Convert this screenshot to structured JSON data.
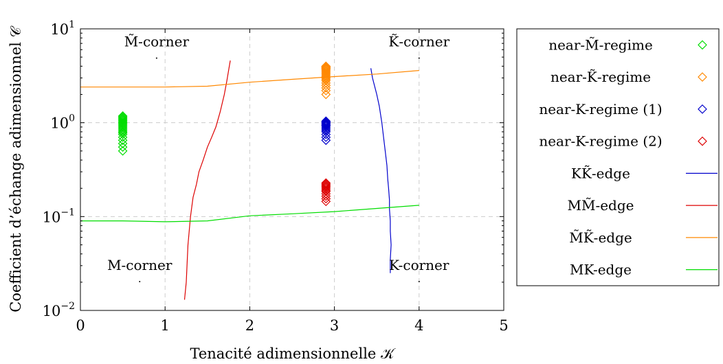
{
  "chart_data": {
    "type": "scatter",
    "xlabel": "Tenacité adimensionnelle 𝒦",
    "ylabel": "Coefficient d’échange adimensionnel 𝒞",
    "xlim": [
      0,
      5
    ],
    "ylim": [
      0.01,
      10
    ],
    "yscale": "log",
    "grid": true,
    "x_ticks": [
      "0",
      "1",
      "2",
      "3",
      "4",
      "5"
    ],
    "y_ticks": [
      {
        "value": 0.01,
        "base": "10",
        "exp": "−2"
      },
      {
        "value": 0.1,
        "base": "10",
        "exp": "−1"
      },
      {
        "value": 1,
        "base": "10",
        "exp": "0"
      },
      {
        "value": 10,
        "base": "10",
        "exp": "1"
      }
    ],
    "legend_position": "outside-right",
    "corner_labels": [
      {
        "id": "m-tilde-corner",
        "text": "M̃-corner",
        "x": 0.9,
        "y": 6.5
      },
      {
        "id": "k-tilde-corner",
        "text": "K̃-corner",
        "x": 4.0,
        "y": 6.5
      },
      {
        "id": "m-corner",
        "text": "M-corner",
        "x": 0.7,
        "y": 0.027
      },
      {
        "id": "k-corner",
        "text": "K-corner",
        "x": 4.0,
        "y": 0.027
      }
    ],
    "series": [
      {
        "name": "near-M̃-regime",
        "kind": "markers",
        "marker": "diamond",
        "color": "#00dd00",
        "x": [
          0.5,
          0.5,
          0.5,
          0.5,
          0.5,
          0.5,
          0.5,
          0.5,
          0.5,
          0.5,
          0.5,
          0.5,
          0.5,
          0.5,
          0.5,
          0.5,
          0.5,
          0.5,
          0.5,
          0.5,
          0.5
        ],
        "y": [
          0.5,
          0.55,
          0.6,
          0.65,
          0.7,
          0.75,
          0.78,
          0.8,
          0.83,
          0.86,
          0.89,
          0.92,
          0.95,
          0.98,
          1.0,
          1.03,
          1.06,
          1.09,
          1.12,
          1.15,
          1.18
        ]
      },
      {
        "name": "near-K̃-regime",
        "kind": "markers",
        "marker": "diamond",
        "color": "#ff8800",
        "x": [
          2.9,
          2.9,
          2.9,
          2.9,
          2.9,
          2.9,
          2.9,
          2.9,
          2.9,
          2.9,
          2.9,
          2.9,
          2.9,
          2.9,
          2.9,
          2.9,
          2.9,
          2.9,
          2.9,
          2.9,
          2.9
        ],
        "y": [
          2.0,
          2.2,
          2.35,
          2.5,
          2.65,
          2.8,
          2.9,
          3.0,
          3.1,
          3.2,
          3.3,
          3.4,
          3.5,
          3.6,
          3.7,
          3.75,
          3.8,
          3.85,
          3.9,
          3.95,
          4.0
        ]
      },
      {
        "name": "near-K-regime (1)",
        "kind": "markers",
        "marker": "diamond",
        "color": "#0000cc",
        "x": [
          2.9,
          2.9,
          2.9,
          2.9,
          2.9,
          2.9,
          2.9,
          2.9,
          2.9,
          2.9,
          2.9,
          2.9,
          2.9,
          2.9
        ],
        "y": [
          0.65,
          0.7,
          0.75,
          0.8,
          0.83,
          0.86,
          0.89,
          0.92,
          0.94,
          0.96,
          0.98,
          1.0,
          1.02,
          1.04
        ]
      },
      {
        "name": "near-K-regime (2)",
        "kind": "markers",
        "marker": "diamond",
        "color": "#dd0000",
        "x": [
          2.9,
          2.9,
          2.9,
          2.9,
          2.9,
          2.9,
          2.9,
          2.9,
          2.9,
          2.9,
          2.9,
          2.9
        ],
        "y": [
          0.145,
          0.155,
          0.165,
          0.175,
          0.185,
          0.19,
          0.197,
          0.204,
          0.21,
          0.216,
          0.222,
          0.228
        ]
      },
      {
        "name": "KK̃-edge",
        "kind": "line",
        "color": "#0000cc",
        "x": [
          3.43,
          3.45,
          3.5,
          3.53,
          3.56,
          3.58,
          3.6,
          3.62,
          3.63,
          3.64,
          3.65,
          3.65,
          3.66,
          3.66,
          3.67,
          3.66,
          3.66
        ],
        "y": [
          3.8,
          3.0,
          2.0,
          1.5,
          1.0,
          0.7,
          0.5,
          0.35,
          0.25,
          0.2,
          0.15,
          0.12,
          0.09,
          0.07,
          0.05,
          0.035,
          0.025
        ]
      },
      {
        "name": "MM̃-edge",
        "kind": "line",
        "color": "#dd0000",
        "x": [
          1.23,
          1.25,
          1.27,
          1.3,
          1.33,
          1.37,
          1.4,
          1.45,
          1.5,
          1.55,
          1.6,
          1.65,
          1.7,
          1.73,
          1.75,
          1.77
        ],
        "y": [
          0.013,
          0.02,
          0.05,
          0.1,
          0.16,
          0.22,
          0.3,
          0.4,
          0.55,
          0.7,
          0.9,
          1.3,
          2.0,
          2.8,
          3.6,
          4.6
        ]
      },
      {
        "name": "M̃K̃-edge",
        "kind": "line",
        "color": "#ff8800",
        "x": [
          0,
          0.5,
          1.0,
          1.5,
          2.0,
          2.5,
          3.0,
          3.5,
          4.0
        ],
        "y": [
          2.4,
          2.4,
          2.4,
          2.45,
          2.7,
          2.9,
          3.1,
          3.3,
          3.6
        ]
      },
      {
        "name": "MK-edge",
        "kind": "line",
        "color": "#00dd00",
        "x": [
          0,
          0.5,
          1.0,
          1.5,
          2.0,
          2.5,
          3.0,
          3.5,
          4.0
        ],
        "y": [
          0.09,
          0.09,
          0.088,
          0.09,
          0.102,
          0.107,
          0.113,
          0.122,
          0.132
        ]
      }
    ]
  }
}
